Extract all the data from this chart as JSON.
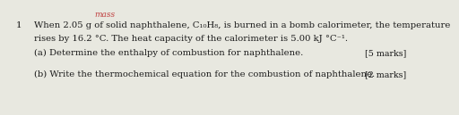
{
  "background_color": "#e8e8e0",
  "question_number": "1",
  "mass_label": "mass",
  "line1": "When 2.05 g of solid naphthalene, C₁₀H₈, is burned in a bomb calorimeter, the temperature",
  "line2": "rises by 16.2 °C. The heat capacity of the calorimeter is 5.00 kJ °C⁻¹.",
  "part_a": "(a) Determine the enthalpy of combustion for naphthalene.",
  "part_a_marks": "[5 marks]",
  "part_b": "(b) Write the thermochemical equation for the combustion of naphthalene.",
  "part_b_marks": "[2 marks]",
  "font_size_main": 7.2,
  "font_size_marks": 6.8,
  "font_size_number": 7.5,
  "font_size_mass": 6.5,
  "font_color": "#1a1a1a",
  "marks_color": "#1a1a1a",
  "mass_color": "#c04040"
}
